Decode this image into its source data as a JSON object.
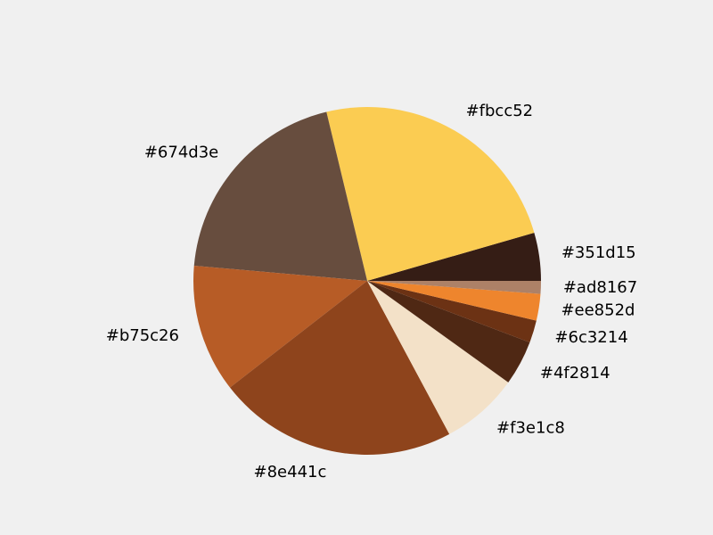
{
  "page": {
    "background": "#f0f0f0"
  },
  "chart_data": {
    "type": "pie",
    "title": "",
    "legend": "none",
    "start_angle_deg": 0,
    "direction": "counterclockwise",
    "slices": [
      {
        "label": "#351d15",
        "value": 4.5,
        "color": "#351d15"
      },
      {
        "label": "#fbcc52",
        "value": 24.5,
        "color": "#fbcc52"
      },
      {
        "label": "#674d3e",
        "value": 20.0,
        "color": "#674d3e"
      },
      {
        "label": "#b75c26",
        "value": 12.0,
        "color": "#b75c26"
      },
      {
        "label": "#8e441c",
        "value": 22.5,
        "color": "#8e441c"
      },
      {
        "label": "#f3e1c8",
        "value": 7.3,
        "color": "#f3e1c8"
      },
      {
        "label": "#4f2814",
        "value": 4.2,
        "color": "#4f2814"
      },
      {
        "label": "#6c3214",
        "value": 2.1,
        "color": "#6c3214"
      },
      {
        "label": "#ee852d",
        "value": 2.5,
        "color": "#ee852d"
      },
      {
        "label": "#ad8167",
        "value": 1.2,
        "color": "#ad8167"
      }
    ]
  }
}
